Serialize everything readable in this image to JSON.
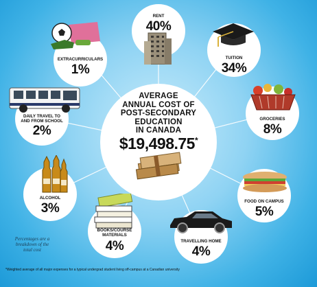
{
  "center": {
    "title_lines": [
      "AVERAGE",
      "ANNUAL COST OF",
      "POST-SECONDARY",
      "EDUCATION",
      "IN CANADA"
    ],
    "total": "$19,498.75",
    "asterisk": "*"
  },
  "items": [
    {
      "key": "rent",
      "label": "RENT",
      "percent": "40%",
      "icon": "apartment-building-icon"
    },
    {
      "key": "tuition",
      "label": "TUITION",
      "percent": "34%",
      "icon": "graduation-cap-icon"
    },
    {
      "key": "groceries",
      "label": "GROCERIES",
      "percent": "8%",
      "icon": "grocery-basket-icon"
    },
    {
      "key": "food_on_campus",
      "label": "FOOD ON CAMPUS",
      "percent": "5%",
      "icon": "sandwich-icon"
    },
    {
      "key": "travelling_home",
      "label": "TRAVELLING HOME",
      "percent": "4%",
      "icon": "car-icon"
    },
    {
      "key": "books",
      "label_lines": [
        "BOOKS/COURSE",
        "MATERIALS"
      ],
      "percent": "4%",
      "icon": "books-icon"
    },
    {
      "key": "alcohol",
      "label": "ALCOHOL",
      "percent": "3%",
      "icon": "beer-bottles-icon"
    },
    {
      "key": "daily_travel",
      "label_lines": [
        "DAILY TRAVEL TO",
        "AND FROM SCHOOL"
      ],
      "percent": "2%",
      "icon": "bus-icon"
    },
    {
      "key": "extracurriculars",
      "label": "EXTRACURRICULARS",
      "percent": "1%",
      "icon": "sports-gear-icon"
    }
  ],
  "note": "Percentages are a breakdown of the total cost",
  "footnote": "*Weighted average of all major expenses for a typical undergrad student living off-campus at a Canadian university",
  "colors": {
    "background": "#3fb2e6",
    "circle": "#ffffff",
    "text": "#111111"
  }
}
